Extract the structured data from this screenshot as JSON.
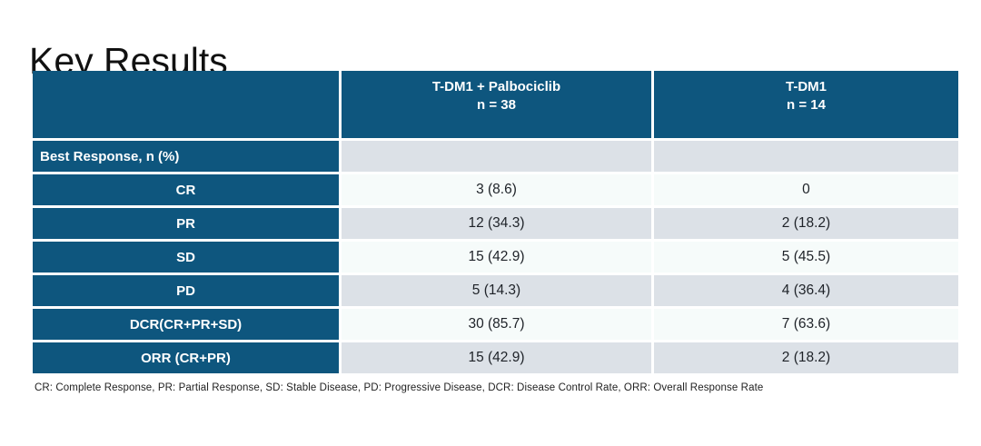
{
  "slide": {
    "title": "Key Results",
    "footnote": "CR: Complete Response, PR: Partial Response, SD: Stable Disease, PD: Progressive Disease, DCR: Disease Control Rate, ORR: Overall Response Rate"
  },
  "colors": {
    "header_bg": "#0E567E",
    "row_gray": "#DCE1E7",
    "row_white": "#F6FBFA",
    "title_text": "#111111",
    "data_text": "#1E2228"
  },
  "table": {
    "columns": {
      "group1": {
        "line1": "T-DM1 + Palbociclib",
        "line2": "n = 38"
      },
      "group2": {
        "line1": "T-DM1",
        "line2": "n = 14"
      }
    },
    "rows": [
      {
        "label": "Best Response, n (%)",
        "arm1": "",
        "arm2": ""
      },
      {
        "label": "CR",
        "arm1": "3 (8.6)",
        "arm2": "0"
      },
      {
        "label": "PR",
        "arm1": "12 (34.3)",
        "arm2": "2 (18.2)"
      },
      {
        "label": "SD",
        "arm1": "15 (42.9)",
        "arm2": "5 (45.5)"
      },
      {
        "label": "PD",
        "arm1": "5 (14.3)",
        "arm2": "4 (36.4)"
      },
      {
        "label": "DCR(CR+PR+SD)",
        "arm1": "30 (85.7)",
        "arm2": "7 (63.6)"
      },
      {
        "label": "ORR (CR+PR)",
        "arm1": "15 (42.9)",
        "arm2": "2 (18.2)"
      }
    ]
  }
}
